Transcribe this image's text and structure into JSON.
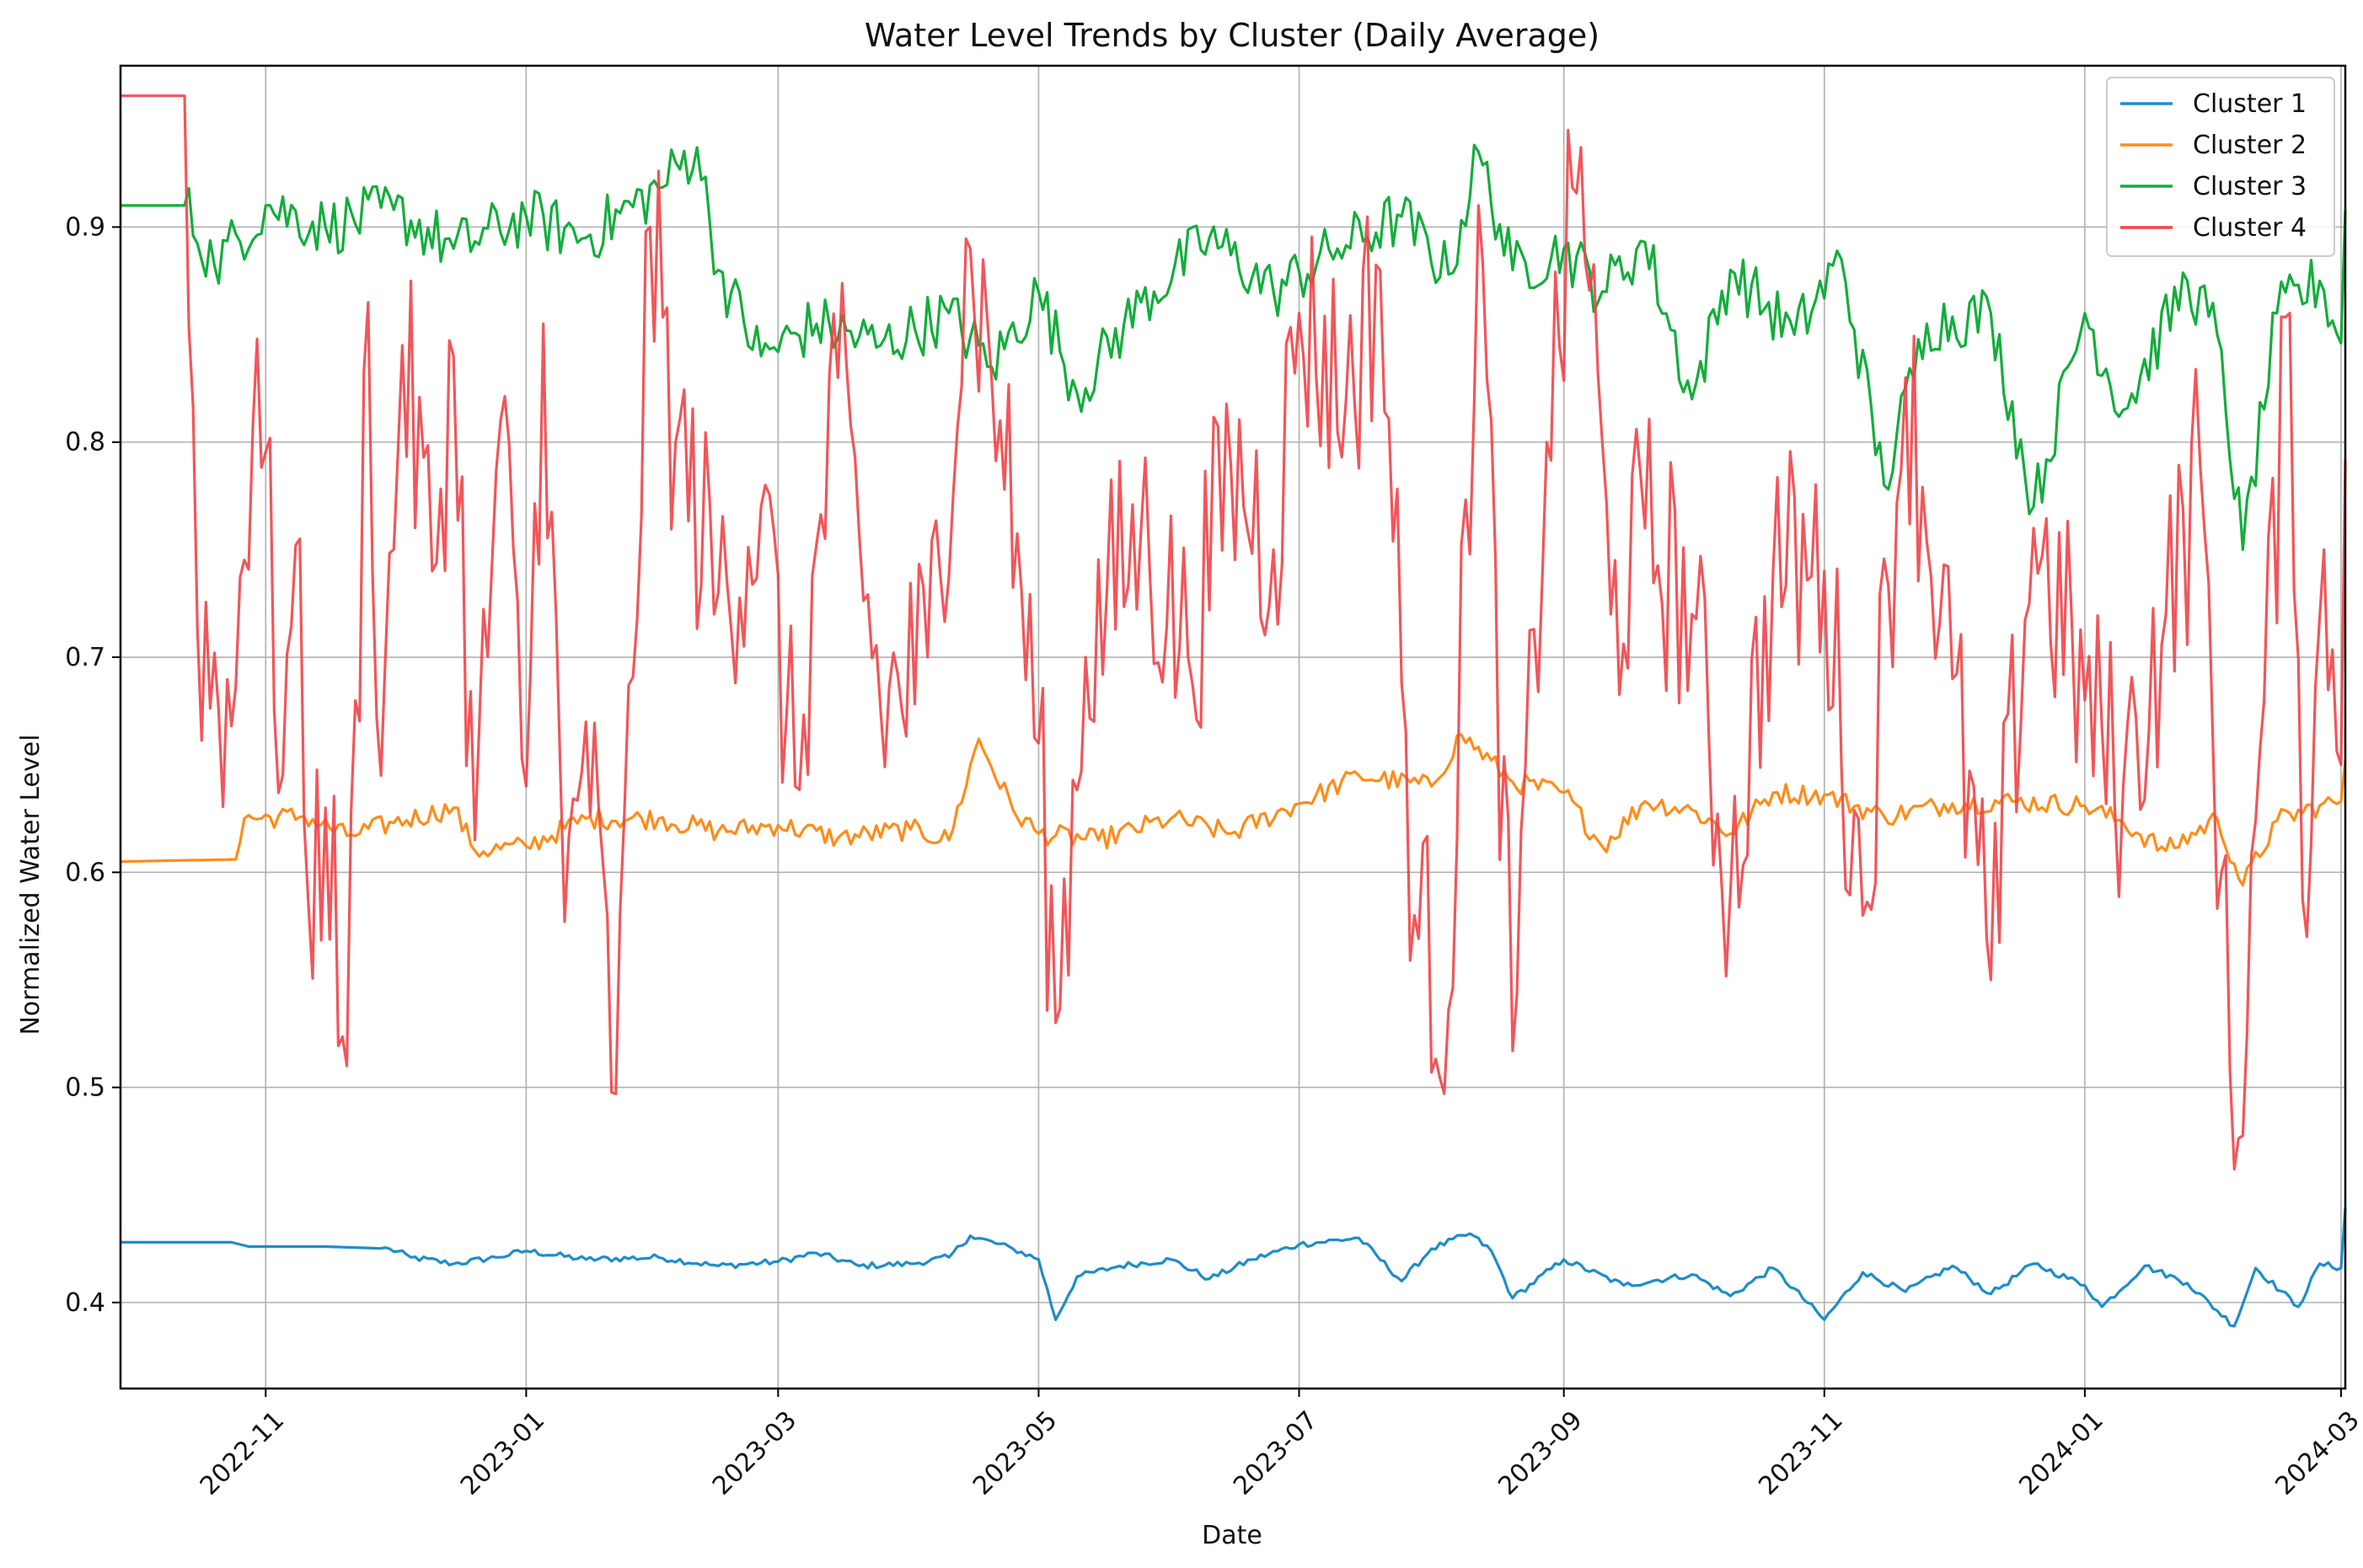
{
  "chart_data": {
    "type": "line",
    "title": "Water Level Trends by Cluster (Daily Average)",
    "xlabel": "Date",
    "ylabel": "Normalized Water Level",
    "x_range": [
      "2022-09-28",
      "2024-03-02"
    ],
    "ylim": [
      0.36,
      0.975
    ],
    "grid": true,
    "legend_position": "top-right",
    "x_ticks": [
      "2022-11",
      "2023-01",
      "2023-03",
      "2023-05",
      "2023-07",
      "2023-09",
      "2023-11",
      "2024-01",
      "2024-03"
    ],
    "y_ticks": [
      "0.4",
      "0.5",
      "0.6",
      "0.7",
      "0.8",
      "0.9"
    ],
    "series": [
      {
        "name": "Cluster 1",
        "color": "#1f8dc9",
        "points": [
          [
            "2022-09-28",
            0.428
          ],
          [
            "2022-10-24",
            0.428
          ],
          [
            "2022-10-28",
            0.426
          ],
          [
            "2022-11-15",
            0.426
          ],
          [
            "2022-11-30",
            0.425
          ],
          [
            "2022-12-05",
            0.421
          ],
          [
            "2022-12-15",
            0.418
          ],
          [
            "2022-12-25",
            0.421
          ],
          [
            "2023-01-01",
            0.424
          ],
          [
            "2023-01-15",
            0.42
          ],
          [
            "2023-02-01",
            0.421
          ],
          [
            "2023-02-15",
            0.417
          ],
          [
            "2023-03-01",
            0.419
          ],
          [
            "2023-03-10",
            0.423
          ],
          [
            "2023-03-20",
            0.417
          ],
          [
            "2023-04-01",
            0.418
          ],
          [
            "2023-04-10",
            0.421
          ],
          [
            "2023-04-15",
            0.431
          ],
          [
            "2023-04-25",
            0.425
          ],
          [
            "2023-05-01",
            0.42
          ],
          [
            "2023-05-05",
            0.392
          ],
          [
            "2023-05-10",
            0.412
          ],
          [
            "2023-05-20",
            0.417
          ],
          [
            "2023-06-01",
            0.42
          ],
          [
            "2023-06-10",
            0.411
          ],
          [
            "2023-06-20",
            0.42
          ],
          [
            "2023-07-01",
            0.427
          ],
          [
            "2023-07-15",
            0.43
          ],
          [
            "2023-07-25",
            0.41
          ],
          [
            "2023-08-01",
            0.425
          ],
          [
            "2023-08-10",
            0.432
          ],
          [
            "2023-08-15",
            0.424
          ],
          [
            "2023-08-20",
            0.402
          ],
          [
            "2023-09-01",
            0.42
          ],
          [
            "2023-09-15",
            0.408
          ],
          [
            "2023-10-01",
            0.413
          ],
          [
            "2023-10-10",
            0.403
          ],
          [
            "2023-10-20",
            0.416
          ],
          [
            "2023-11-01",
            0.392
          ],
          [
            "2023-11-10",
            0.414
          ],
          [
            "2023-11-20",
            0.405
          ],
          [
            "2023-12-01",
            0.417
          ],
          [
            "2023-12-10",
            0.404
          ],
          [
            "2023-12-20",
            0.418
          ],
          [
            "2024-01-01",
            0.408
          ],
          [
            "2024-01-05",
            0.398
          ],
          [
            "2024-01-15",
            0.417
          ],
          [
            "2024-01-25",
            0.409
          ],
          [
            "2024-02-05",
            0.389
          ],
          [
            "2024-02-10",
            0.416
          ],
          [
            "2024-02-20",
            0.398
          ],
          [
            "2024-02-25",
            0.418
          ],
          [
            "2024-03-01",
            0.416
          ],
          [
            "2024-03-02",
            0.444
          ]
        ]
      },
      {
        "name": "Cluster 2",
        "color": "#ff8c1a",
        "points": [
          [
            "2022-09-28",
            0.605
          ],
          [
            "2022-10-25",
            0.606
          ],
          [
            "2022-10-27",
            0.625
          ],
          [
            "2022-11-10",
            0.626
          ],
          [
            "2022-11-20",
            0.617
          ],
          [
            "2022-12-01",
            0.623
          ],
          [
            "2022-12-15",
            0.63
          ],
          [
            "2022-12-20",
            0.61
          ],
          [
            "2023-01-01",
            0.612
          ],
          [
            "2023-01-15",
            0.625
          ],
          [
            "2023-02-01",
            0.625
          ],
          [
            "2023-02-15",
            0.619
          ],
          [
            "2023-03-01",
            0.622
          ],
          [
            "2023-03-15",
            0.616
          ],
          [
            "2023-04-01",
            0.62
          ],
          [
            "2023-04-10",
            0.615
          ],
          [
            "2023-04-17",
            0.662
          ],
          [
            "2023-04-25",
            0.629
          ],
          [
            "2023-05-01",
            0.618
          ],
          [
            "2023-05-15",
            0.615
          ],
          [
            "2023-06-01",
            0.625
          ],
          [
            "2023-06-15",
            0.618
          ],
          [
            "2023-07-01",
            0.632
          ],
          [
            "2023-07-15",
            0.645
          ],
          [
            "2023-08-01",
            0.64
          ],
          [
            "2023-08-08",
            0.664
          ],
          [
            "2023-08-20",
            0.642
          ],
          [
            "2023-09-01",
            0.637
          ],
          [
            "2023-09-10",
            0.612
          ],
          [
            "2023-09-20",
            0.633
          ],
          [
            "2023-10-01",
            0.629
          ],
          [
            "2023-10-10",
            0.618
          ],
          [
            "2023-10-20",
            0.637
          ],
          [
            "2023-11-01",
            0.636
          ],
          [
            "2023-11-15",
            0.626
          ],
          [
            "2023-12-01",
            0.632
          ],
          [
            "2023-12-15",
            0.633
          ],
          [
            "2024-01-01",
            0.631
          ],
          [
            "2024-01-10",
            0.623
          ],
          [
            "2024-01-20",
            0.61
          ],
          [
            "2024-02-01",
            0.625
          ],
          [
            "2024-02-07",
            0.594
          ],
          [
            "2024-02-15",
            0.624
          ],
          [
            "2024-02-25",
            0.631
          ],
          [
            "2024-03-01",
            0.633
          ],
          [
            "2024-03-02",
            0.652
          ]
        ]
      },
      {
        "name": "Cluster 3",
        "color": "#14ad3c",
        "points": [
          [
            "2022-09-28",
            0.91
          ],
          [
            "2022-10-13",
            0.91
          ],
          [
            "2022-10-20",
            0.882
          ],
          [
            "2022-11-01",
            0.91
          ],
          [
            "2022-11-15",
            0.9
          ],
          [
            "2022-12-01",
            0.908
          ],
          [
            "2022-12-15",
            0.89
          ],
          [
            "2023-01-01",
            0.905
          ],
          [
            "2023-01-15",
            0.895
          ],
          [
            "2023-02-01",
            0.918
          ],
          [
            "2023-02-10",
            0.937
          ],
          [
            "2023-02-15",
            0.88
          ],
          [
            "2023-02-25",
            0.84
          ],
          [
            "2023-03-10",
            0.855
          ],
          [
            "2023-03-25",
            0.845
          ],
          [
            "2023-04-10",
            0.86
          ],
          [
            "2023-04-20",
            0.835
          ],
          [
            "2023-05-01",
            0.87
          ],
          [
            "2023-05-10",
            0.823
          ],
          [
            "2023-05-25",
            0.865
          ],
          [
            "2023-06-10",
            0.895
          ],
          [
            "2023-06-25",
            0.87
          ],
          [
            "2023-07-10",
            0.89
          ],
          [
            "2023-07-25",
            0.905
          ],
          [
            "2023-08-05",
            0.878
          ],
          [
            "2023-08-12",
            0.935
          ],
          [
            "2023-08-20",
            0.88
          ],
          [
            "2023-09-01",
            0.89
          ],
          [
            "2023-09-10",
            0.87
          ],
          [
            "2023-09-20",
            0.893
          ],
          [
            "2023-10-01",
            0.82
          ],
          [
            "2023-10-10",
            0.88
          ],
          [
            "2023-10-25",
            0.85
          ],
          [
            "2023-11-05",
            0.885
          ],
          [
            "2023-11-15",
            0.78
          ],
          [
            "2023-11-25",
            0.855
          ],
          [
            "2023-12-10",
            0.86
          ],
          [
            "2023-12-20",
            0.77
          ],
          [
            "2024-01-01",
            0.86
          ],
          [
            "2024-01-10",
            0.815
          ],
          [
            "2024-01-25",
            0.875
          ],
          [
            "2024-02-01",
            0.85
          ],
          [
            "2024-02-07",
            0.75
          ],
          [
            "2024-02-15",
            0.86
          ],
          [
            "2024-02-25",
            0.875
          ],
          [
            "2024-03-01",
            0.846
          ],
          [
            "2024-03-02",
            0.908
          ]
        ]
      },
      {
        "name": "Cluster 4",
        "color": "#f04448",
        "points": [
          [
            "2022-09-28",
            0.961
          ],
          [
            "2022-10-13",
            0.961
          ],
          [
            "2022-10-16",
            0.714
          ],
          [
            "2022-10-24",
            0.668
          ],
          [
            "2022-10-30",
            0.848
          ],
          [
            "2022-11-05",
            0.645
          ],
          [
            "2022-11-08",
            0.752
          ],
          [
            "2022-11-11",
            0.585
          ],
          [
            "2022-11-15",
            0.63
          ],
          [
            "2022-11-20",
            0.51
          ],
          [
            "2022-11-25",
            0.865
          ],
          [
            "2022-11-28",
            0.645
          ],
          [
            "2022-12-03",
            0.845
          ],
          [
            "2022-12-10",
            0.74
          ],
          [
            "2022-12-15",
            0.84
          ],
          [
            "2022-12-20",
            0.615
          ],
          [
            "2022-12-26",
            0.81
          ],
          [
            "2023-01-01",
            0.64
          ],
          [
            "2023-01-05",
            0.855
          ],
          [
            "2023-01-10",
            0.577
          ],
          [
            "2023-01-15",
            0.67
          ],
          [
            "2023-01-22",
            0.497
          ],
          [
            "2023-01-30",
            0.9
          ],
          [
            "2023-02-05",
            0.8
          ],
          [
            "2023-02-15",
            0.73
          ],
          [
            "2023-02-25",
            0.77
          ],
          [
            "2023-03-05",
            0.64
          ],
          [
            "2023-03-15",
            0.83
          ],
          [
            "2023-03-25",
            0.675
          ],
          [
            "2023-04-05",
            0.7
          ],
          [
            "2023-04-15",
            0.89
          ],
          [
            "2023-04-22",
            0.81
          ],
          [
            "2023-05-01",
            0.66
          ],
          [
            "2023-05-05",
            0.53
          ],
          [
            "2023-05-12",
            0.7
          ],
          [
            "2023-05-25",
            0.76
          ],
          [
            "2023-06-05",
            0.7
          ],
          [
            "2023-06-15",
            0.79
          ],
          [
            "2023-06-25",
            0.75
          ],
          [
            "2023-07-01",
            0.86
          ],
          [
            "2023-07-12",
            0.82
          ],
          [
            "2023-07-20",
            0.88
          ],
          [
            "2023-07-28",
            0.58
          ],
          [
            "2023-08-05",
            0.536
          ],
          [
            "2023-08-12",
            0.91
          ],
          [
            "2023-08-20",
            0.517
          ],
          [
            "2023-08-28",
            0.8
          ],
          [
            "2023-09-05",
            0.937
          ],
          [
            "2023-09-12",
            0.72
          ],
          [
            "2023-09-20",
            0.76
          ],
          [
            "2023-10-01",
            0.72
          ],
          [
            "2023-10-10",
            0.59
          ],
          [
            "2023-10-20",
            0.74
          ],
          [
            "2023-11-01",
            0.74
          ],
          [
            "2023-11-10",
            0.58
          ],
          [
            "2023-11-20",
            0.83
          ],
          [
            "2023-12-01",
            0.69
          ],
          [
            "2023-12-10",
            0.55
          ],
          [
            "2023-12-20",
            0.76
          ],
          [
            "2024-01-01",
            0.68
          ],
          [
            "2024-01-10",
            0.64
          ],
          [
            "2024-01-20",
            0.72
          ],
          [
            "2024-01-28",
            0.79
          ],
          [
            "2024-02-02",
            0.6
          ],
          [
            "2024-02-05",
            0.462
          ],
          [
            "2024-02-12",
            0.68
          ],
          [
            "2024-02-18",
            0.86
          ],
          [
            "2024-02-22",
            0.57
          ],
          [
            "2024-02-26",
            0.75
          ],
          [
            "2024-03-01",
            0.65
          ],
          [
            "2024-03-02",
            0.792
          ]
        ]
      }
    ]
  }
}
